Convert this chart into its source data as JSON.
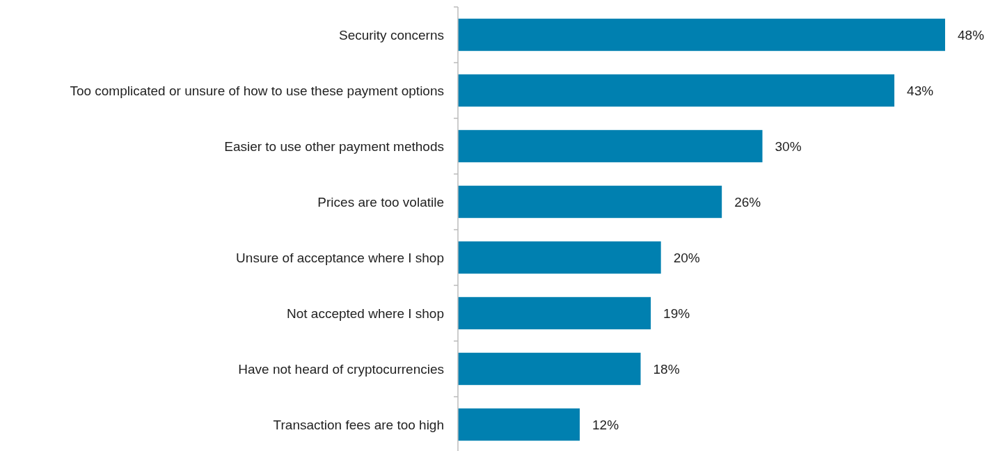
{
  "chart_data": {
    "type": "bar",
    "orientation": "horizontal",
    "categories": [
      "Security concerns",
      "Too complicated or unsure of how to use these payment options",
      "Easier to use other payment methods",
      "Prices are too volatile",
      "Unsure of acceptance where I shop",
      "Not accepted where I shop",
      "Have not heard of cryptocurrencies",
      "Transaction fees are too high"
    ],
    "values": [
      48,
      43,
      30,
      26,
      20,
      19,
      18,
      12
    ],
    "value_labels": [
      "48%",
      "43%",
      "30%",
      "26%",
      "20%",
      "19%",
      "18%",
      "12%"
    ],
    "color": "#0080b0"
  }
}
